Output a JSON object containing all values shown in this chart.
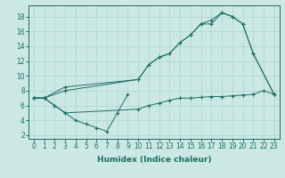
{
  "xlabel": "Humidex (Indice chaleur)",
  "bg_color": "#cce8e4",
  "grid_color": "#aad4d0",
  "line_color": "#1a6e62",
  "xlim": [
    -0.5,
    23.5
  ],
  "ylim": [
    1.5,
    19.5
  ],
  "xticks": [
    0,
    1,
    2,
    3,
    4,
    5,
    6,
    7,
    8,
    9,
    10,
    11,
    12,
    13,
    14,
    15,
    16,
    17,
    18,
    19,
    20,
    21,
    22,
    23
  ],
  "yticks": [
    2,
    4,
    6,
    8,
    10,
    12,
    14,
    16,
    18
  ],
  "series": [
    {
      "x": [
        0,
        1,
        2,
        3,
        4,
        5,
        6,
        7,
        8,
        9
      ],
      "y": [
        7,
        7,
        6,
        5,
        4,
        3.5,
        3,
        2.5,
        5,
        7.5
      ]
    },
    {
      "x": [
        0,
        1,
        2,
        3,
        10,
        11,
        12,
        13,
        14,
        15,
        16,
        17,
        18,
        19,
        20,
        21,
        22,
        23
      ],
      "y": [
        7,
        7,
        6,
        5,
        5.5,
        6.0,
        6.3,
        6.7,
        7.0,
        7.0,
        7.1,
        7.2,
        7.2,
        7.3,
        7.4,
        7.5,
        8.0,
        7.5
      ]
    },
    {
      "x": [
        0,
        1,
        3,
        10,
        11,
        12,
        13,
        14,
        15,
        16,
        17,
        18,
        19,
        20,
        21,
        23
      ],
      "y": [
        7,
        7,
        8.5,
        9.5,
        11.5,
        12.5,
        13.0,
        14.5,
        15.5,
        17.0,
        17.5,
        18.5,
        18.0,
        17.0,
        13.0,
        7.5
      ]
    },
    {
      "x": [
        0,
        1,
        3,
        10,
        11,
        12,
        13,
        14,
        15,
        16,
        17,
        18,
        19,
        20,
        21,
        23
      ],
      "y": [
        7,
        7,
        8.0,
        9.5,
        11.5,
        12.5,
        13.0,
        14.5,
        15.5,
        17.0,
        17.0,
        18.5,
        18.0,
        17.0,
        13.0,
        7.5
      ]
    }
  ],
  "tick_fontsize": 5.5,
  "xlabel_fontsize": 6.5
}
